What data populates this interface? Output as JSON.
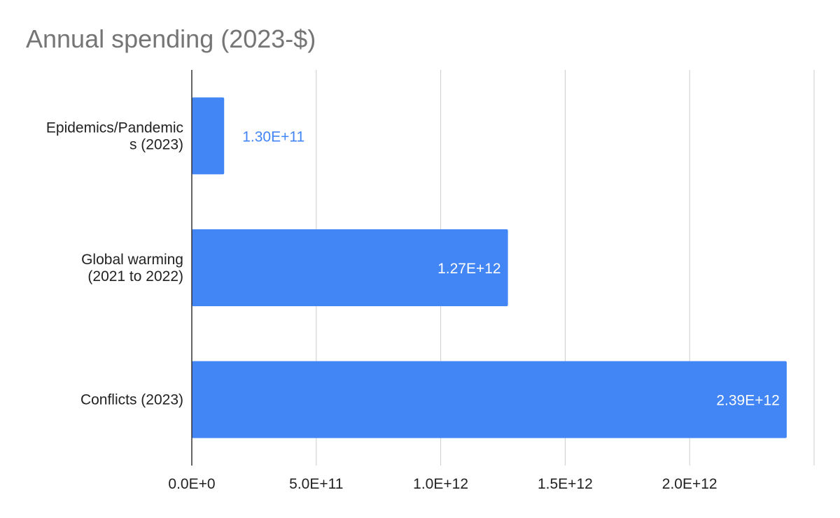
{
  "chart_data": {
    "type": "bar",
    "orientation": "horizontal",
    "title": "Annual spending (2023-$)",
    "xlabel": "",
    "ylabel": "",
    "categories": [
      [
        "Epidemics/Pandemic",
        "s (2023)"
      ],
      [
        "Global warming",
        "(2021 to 2022)"
      ],
      [
        "Conflicts (2023)"
      ]
    ],
    "values": [
      130000000000,
      1270000000000,
      2390000000000
    ],
    "value_labels": [
      "1.30E+11",
      "1.27E+12",
      "2.39E+12"
    ],
    "xlim": [
      0,
      2500000000000
    ],
    "xticks": [
      0,
      500000000000,
      1000000000000,
      1500000000000,
      2000000000000,
      2500000000000
    ],
    "xtick_labels": [
      "0.0E+0",
      "5.0E+11",
      "1.0E+12",
      "1.5E+12",
      "2.0E+12",
      ""
    ],
    "grid": true,
    "legend": "none",
    "colors": {
      "bar": "#4285f4",
      "grid": "#cccccc",
      "axis": "#333333",
      "label_inside": "#ffffff",
      "label_outside": "#4285f4"
    }
  }
}
